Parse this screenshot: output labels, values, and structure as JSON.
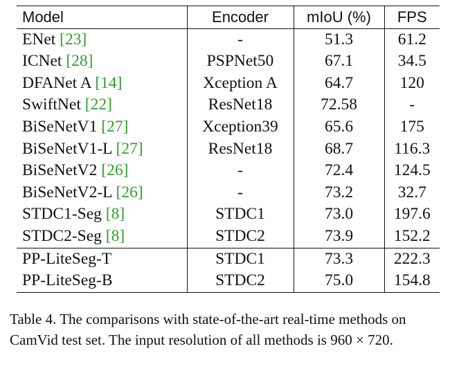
{
  "table": {
    "headers": [
      "Model",
      "Encoder",
      "mIoU (%)",
      "FPS"
    ],
    "rows": [
      {
        "model": "ENet",
        "cite": "23",
        "encoder": "-",
        "miou": "51.3",
        "fps": "61.2"
      },
      {
        "model": "ICNet",
        "cite": "28",
        "encoder": "PSPNet50",
        "miou": "67.1",
        "fps": "34.5"
      },
      {
        "model": "DFANet A",
        "cite": "14",
        "encoder": "Xception A",
        "miou": "64.7",
        "fps": "120"
      },
      {
        "model": "SwiftNet",
        "cite": "22",
        "encoder": "ResNet18",
        "miou": "72.58",
        "fps": "-"
      },
      {
        "model": "BiSeNetV1",
        "cite": "27",
        "encoder": "Xception39",
        "miou": "65.6",
        "fps": "175"
      },
      {
        "model": "BiSeNetV1-L",
        "cite": "27",
        "encoder": "ResNet18",
        "miou": "68.7",
        "fps": "116.3"
      },
      {
        "model": "BiSeNetV2",
        "cite": "26",
        "encoder": "-",
        "miou": "72.4",
        "fps": "124.5"
      },
      {
        "model": "BiSeNetV2-L",
        "cite": "26",
        "encoder": "-",
        "miou": "73.2",
        "fps": "32.7"
      },
      {
        "model": "STDC1-Seg",
        "cite": "8",
        "encoder": "STDC1",
        "miou": "73.0",
        "fps": "197.6"
      },
      {
        "model": "STDC2-Seg",
        "cite": "8",
        "encoder": "STDC2",
        "miou": "73.9",
        "fps": "152.2"
      }
    ],
    "ours": [
      {
        "model": "PP-LiteSeg-T",
        "encoder": "STDC1",
        "miou": "73.3",
        "fps": "222.3",
        "bold": "fps"
      },
      {
        "model": "PP-LiteSeg-B",
        "encoder": "STDC2",
        "miou": "75.0",
        "fps": "154.8",
        "bold": "miou"
      }
    ]
  },
  "caption": "Table 4. The comparisons with state-of-the-art real-time methods on CamVid test set. The input resolution of all methods is 960 × 720.",
  "colors": {
    "citation": "#2ca02c",
    "text": "#111111"
  }
}
